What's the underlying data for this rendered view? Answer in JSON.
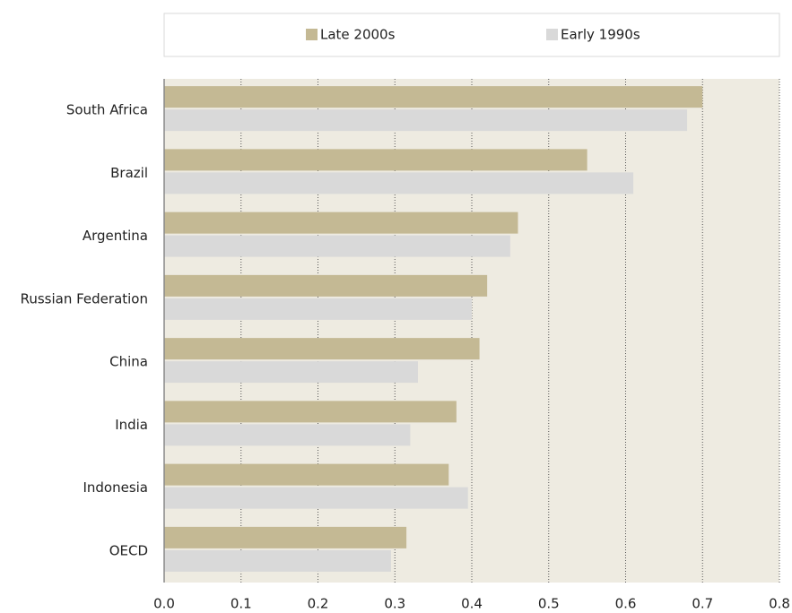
{
  "chart_data": {
    "type": "barh",
    "categories": [
      "South Africa",
      "Brazil",
      "Argentina",
      "Russian Federation",
      "China",
      "India",
      "Indonesia",
      "OECD"
    ],
    "series": [
      {
        "name": "Late 2000s",
        "color": "#c4b994",
        "values": [
          0.7,
          0.55,
          0.46,
          0.42,
          0.41,
          0.38,
          0.37,
          0.315
        ]
      },
      {
        "name": "Early 1990s",
        "color": "#d9d9d9",
        "values": [
          0.68,
          0.61,
          0.45,
          0.4,
          0.33,
          0.32,
          0.395,
          0.295
        ]
      }
    ],
    "xlim": [
      0,
      0.8
    ],
    "xticks": [
      {
        "value": 0,
        "label": "0.0"
      },
      0.1,
      0.2,
      0.3,
      0.4,
      0.5,
      0.6,
      0.7,
      0.8
    ],
    "grid": true,
    "legend": "top"
  }
}
